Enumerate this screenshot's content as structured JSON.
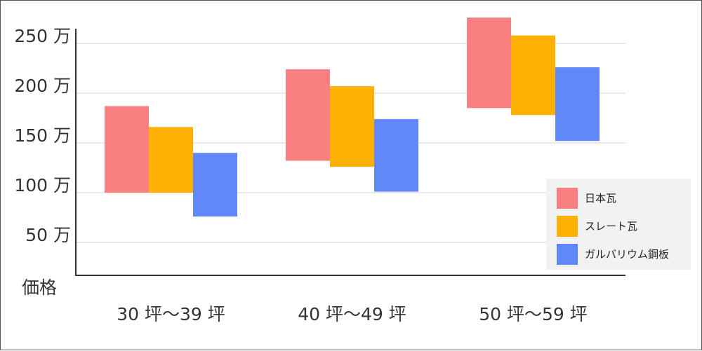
{
  "chart_data": {
    "type": "bar",
    "floating": true,
    "ylabel": "価格",
    "y_unit": "万",
    "ylim": [
      20,
      270
    ],
    "yticks": [
      250,
      200,
      150,
      100,
      50
    ],
    "ytick_labels": [
      "250 万",
      "200 万",
      "150 万",
      "100 万",
      "50 万"
    ],
    "grid": true,
    "legend": "right",
    "categories": [
      "30 坪〜39 坪",
      "40 坪〜49 坪",
      "50 坪〜59 坪"
    ],
    "series": [
      {
        "name": "日本瓦",
        "color": "#F88080",
        "ranges": [
          [
            100,
            187
          ],
          [
            132,
            224
          ],
          [
            185,
            276
          ]
        ]
      },
      {
        "name": "スレート瓦",
        "color": "#FFB103",
        "ranges": [
          [
            100,
            166
          ],
          [
            126,
            207
          ],
          [
            178,
            258
          ]
        ]
      },
      {
        "name": "ガルバリウム鋼板",
        "color": "#6088F8",
        "ranges": [
          [
            76,
            140
          ],
          [
            101,
            174
          ],
          [
            152,
            226
          ]
        ]
      }
    ]
  }
}
